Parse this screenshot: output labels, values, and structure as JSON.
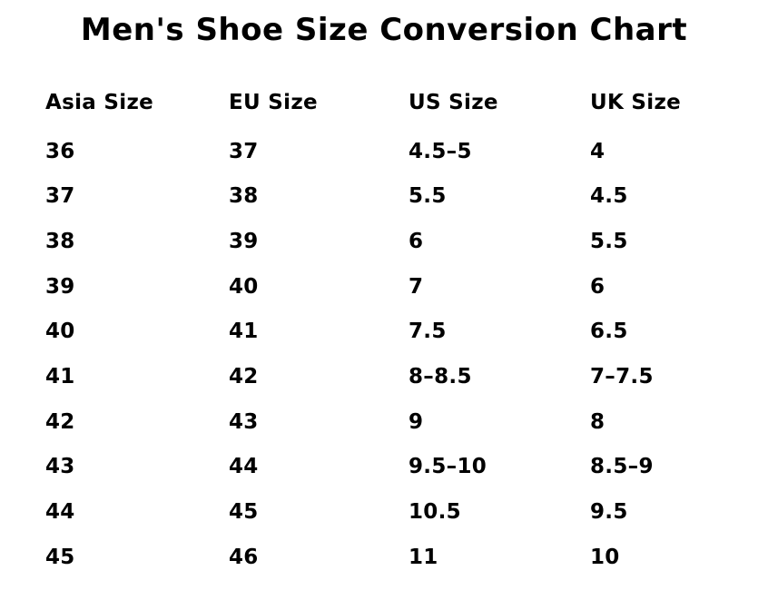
{
  "chart_data": {
    "type": "table",
    "title": "Men's Shoe Size Conversion Chart",
    "columns": [
      "Asia Size",
      "EU Size",
      "US Size",
      "UK Size"
    ],
    "rows": [
      [
        "36",
        "37",
        "4.5–5",
        "4"
      ],
      [
        "37",
        "38",
        "5.5",
        "4.5"
      ],
      [
        "38",
        "39",
        "6",
        "5.5"
      ],
      [
        "39",
        "40",
        "7",
        "6"
      ],
      [
        "40",
        "41",
        "7.5",
        "6.5"
      ],
      [
        "41",
        "42",
        "8–8.5",
        "7–7.5"
      ],
      [
        "42",
        "43",
        "9",
        "8"
      ],
      [
        "43",
        "44",
        "9.5–10",
        "8.5–9"
      ],
      [
        "44",
        "45",
        "10.5",
        "9.5"
      ],
      [
        "45",
        "46",
        "11",
        "10"
      ]
    ]
  },
  "colors": {
    "background": "#ffffff",
    "text": "#000000"
  }
}
